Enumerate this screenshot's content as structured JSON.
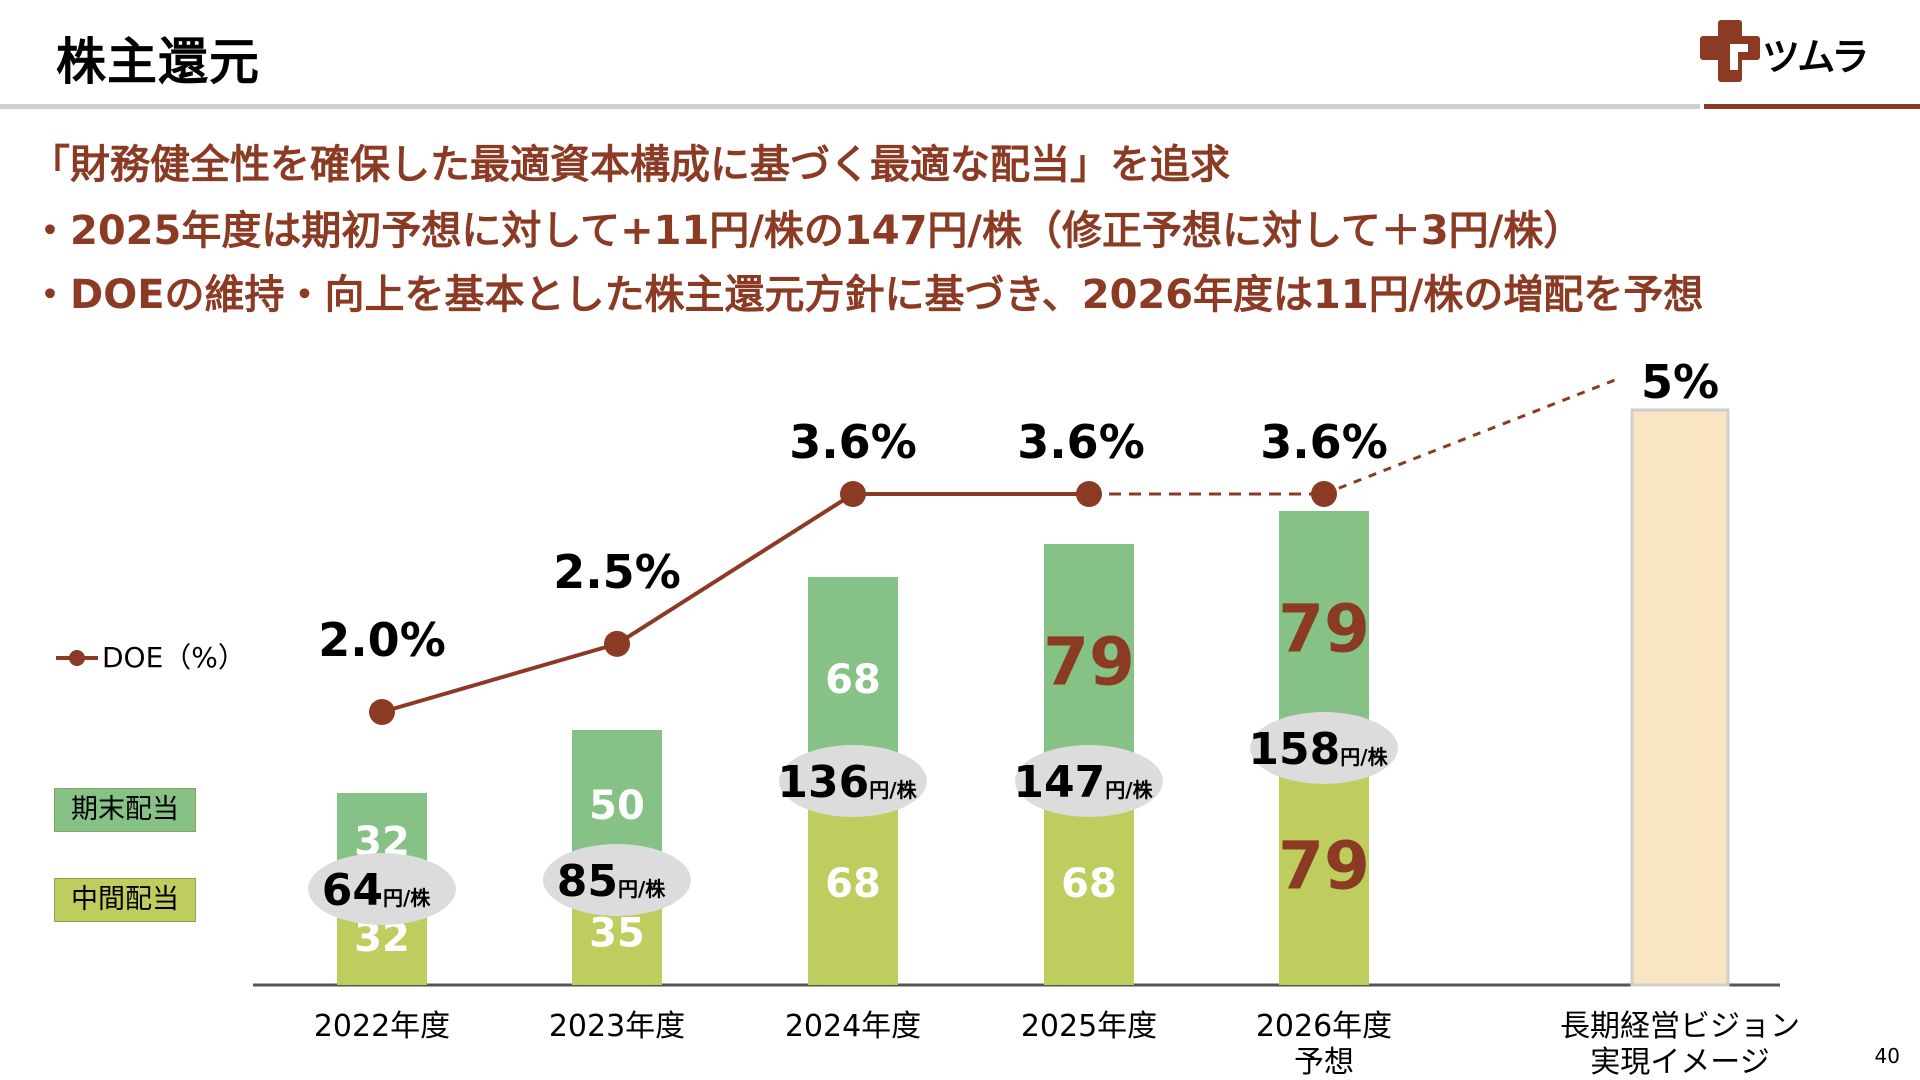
{
  "header": {
    "title": "株主還元",
    "logo_text": "ツムラ"
  },
  "headlines": [
    "「財務健全性を確保した最適資本構成に基づく最適な配当」を追求",
    "・2025年度は期初予想に対して+11円/株の147円/株（修正予想に対して＋3円/株）",
    "・DOEの維持・向上を基本とした株主還元方針に基づき、2026年度は11円/株の増配を予想"
  ],
  "legend": {
    "doe": "DOE（%）",
    "year_end": "期末配当",
    "interim": "中間配当"
  },
  "colors": {
    "brand": "#8b3a24",
    "year_end": "#86c286",
    "interim": "#bfcc5e",
    "vision": "#fae5c2",
    "total_label_bg": "#dcdcdc"
  },
  "total_unit": "円/株",
  "page_number": "40",
  "chart_data": {
    "type": "bar",
    "categories": [
      "2022年度",
      "2023年度",
      "2024年度",
      "2025年度",
      "2026年度\n予想",
      "長期経営ビジョン\n実現イメージ"
    ],
    "series": [
      {
        "name": "中間配当",
        "values": [
          32,
          35,
          68,
          68,
          79,
          null
        ]
      },
      {
        "name": "期末配当",
        "values": [
          32,
          50,
          68,
          79,
          79,
          null
        ]
      }
    ],
    "totals": [
      64,
      85,
      136,
      147,
      158,
      null
    ],
    "doe": {
      "name": "DOE（%）",
      "values": [
        2.0,
        2.5,
        3.6,
        3.6,
        3.6,
        5.0
      ],
      "labels": [
        "2.0%",
        "2.5%",
        "3.6%",
        "3.6%",
        "3.6%",
        "5%"
      ]
    },
    "vision_bar": {
      "value": 5.0,
      "label": "5%"
    },
    "highlight_values": [
      [
        false,
        false
      ],
      [
        false,
        false
      ],
      [
        false,
        false
      ],
      [
        false,
        true
      ],
      [
        true,
        true
      ]
    ],
    "stacked": true,
    "ylim": [
      0,
      190
    ]
  }
}
